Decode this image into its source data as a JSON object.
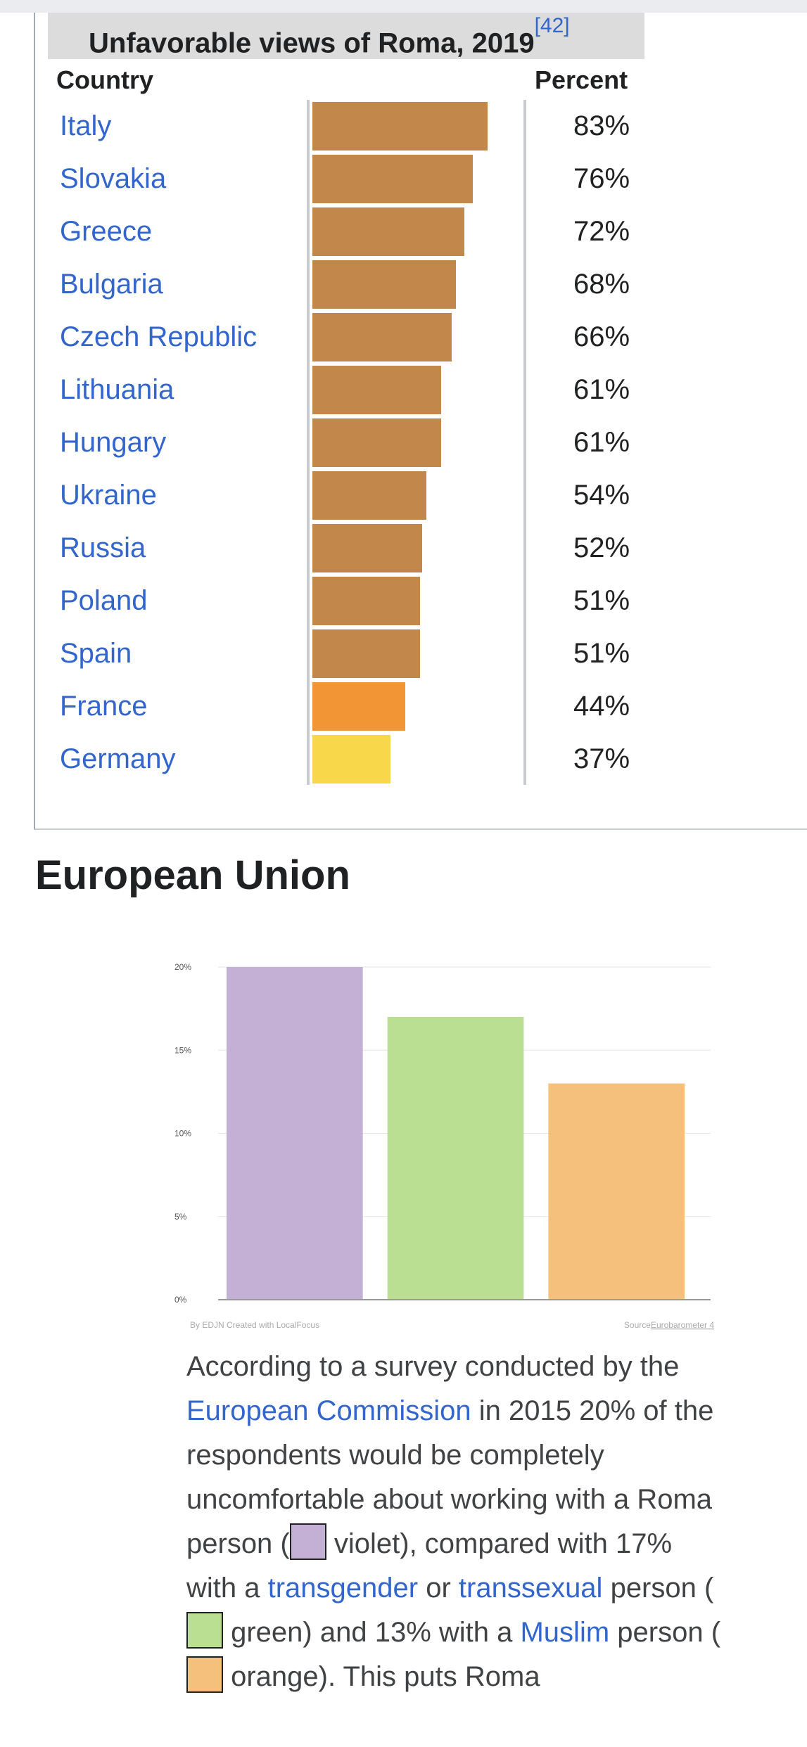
{
  "table": {
    "caption": "Unfavorable views of Roma, 2019",
    "citation": "[42]",
    "header_country": "Country",
    "header_percent": "Percent",
    "max_percent": 100,
    "rows": [
      {
        "country": "Italy",
        "value": 83,
        "percent_label": "83%",
        "color": "#c2874a"
      },
      {
        "country": "Slovakia",
        "value": 76,
        "percent_label": "76%",
        "color": "#c2874a"
      },
      {
        "country": "Greece",
        "value": 72,
        "percent_label": "72%",
        "color": "#c2874a"
      },
      {
        "country": "Bulgaria",
        "value": 68,
        "percent_label": "68%",
        "color": "#c2874a"
      },
      {
        "country": "Czech Republic",
        "value": 66,
        "percent_label": "66%",
        "color": "#c2874a"
      },
      {
        "country": "Lithuania",
        "value": 61,
        "percent_label": "61%",
        "color": "#c2874a"
      },
      {
        "country": "Hungary",
        "value": 61,
        "percent_label": "61%",
        "color": "#c2874a"
      },
      {
        "country": "Ukraine",
        "value": 54,
        "percent_label": "54%",
        "color": "#c2874a"
      },
      {
        "country": "Russia",
        "value": 52,
        "percent_label": "52%",
        "color": "#c2874a"
      },
      {
        "country": "Poland",
        "value": 51,
        "percent_label": "51%",
        "color": "#c2874a"
      },
      {
        "country": "Spain",
        "value": 51,
        "percent_label": "51%",
        "color": "#c2874a"
      },
      {
        "country": "France",
        "value": 44,
        "percent_label": "44%",
        "color": "#f19535"
      },
      {
        "country": "Germany",
        "value": 37,
        "percent_label": "37%",
        "color": "#f8d74a"
      }
    ]
  },
  "section": {
    "title": "European Union"
  },
  "chart_data": {
    "type": "bar",
    "values": [
      20,
      17,
      13
    ],
    "colors": [
      "#c5b0d5",
      "#badf92",
      "#f4c07c"
    ],
    "ylim": [
      0,
      20
    ],
    "yticks": [
      "0%",
      "5%",
      "10%",
      "15%",
      "20%"
    ],
    "credit": "By EDJN Created with LocalFocus",
    "source_prefix": "Source",
    "source_link": "Eurobarometer 4",
    "grid": true
  },
  "paragraph": {
    "t1": "According to a survey conducted by the ",
    "link1": "European Commission",
    "t2": " in 2015 20% of the respondents would be completely uncomfortable about working with a Roma person (",
    "t3": " violet), compared with 17% with a ",
    "link2": "transgender",
    "t4": " or ",
    "link3": "transsexual",
    "t5": " person (",
    "t6": " green) and 13% with a ",
    "link4": "Muslim",
    "t7": " person (",
    "t8": " orange). This puts Roma",
    "swatch_violet": "#c5b0d5",
    "swatch_green": "#badf92",
    "swatch_orange": "#f4c07c"
  }
}
